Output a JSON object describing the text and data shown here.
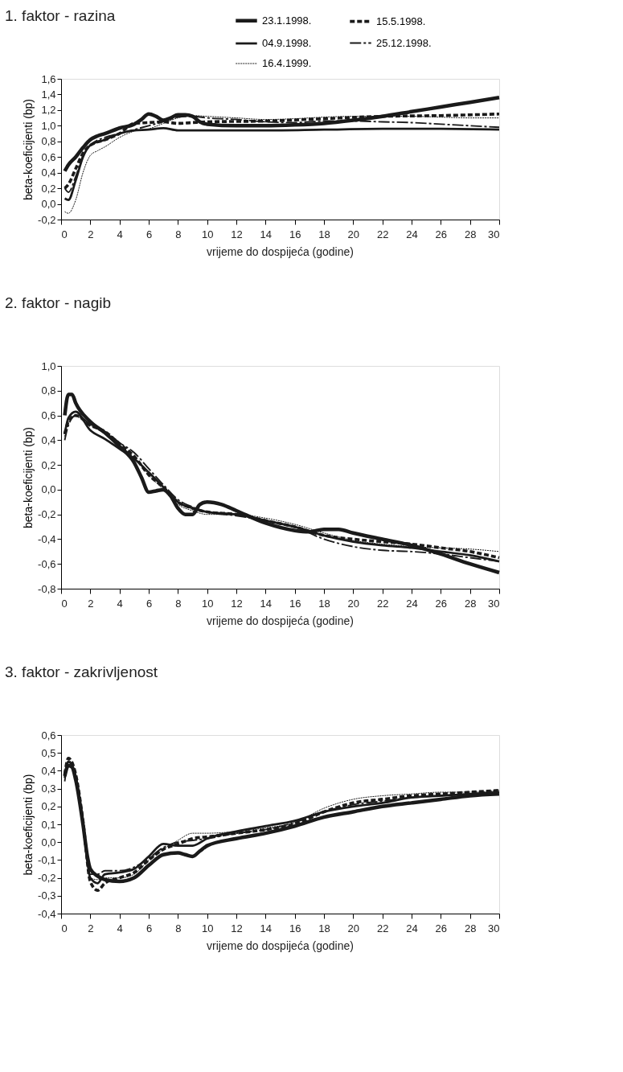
{
  "chart_data": [
    {
      "type": "line",
      "title": "1. faktor - razina",
      "xlabel": "vrijeme do dospijeća (godine)",
      "ylabel": "beta-koeficijenti (bp)",
      "xlim": [
        0,
        30
      ],
      "xticks": [
        0,
        2,
        4,
        6,
        8,
        10,
        12,
        14,
        16,
        18,
        20,
        22,
        24,
        26,
        28,
        30
      ],
      "ylim": [
        -0.2,
        1.6
      ],
      "yticks": [
        {
          "value": -0.2,
          "label": "-0,2"
        },
        {
          "value": 0,
          "label": "0,0"
        },
        {
          "value": 0.2,
          "label": "0,2"
        },
        {
          "value": 0.4,
          "label": "0,4"
        },
        {
          "value": 0.6,
          "label": "0,6"
        },
        {
          "value": 0.8,
          "label": "0,8"
        },
        {
          "value": 1.0,
          "label": "1,0"
        },
        {
          "value": 1.2,
          "label": "1,2"
        },
        {
          "value": 1.4,
          "label": "1,4"
        },
        {
          "value": 1.6,
          "label": "1,6"
        }
      ],
      "grid": false,
      "legend": "top right",
      "series": [
        {
          "name": "23.1.1998.",
          "color": "#1a1a1a",
          "line_style": "solid",
          "x": [
            0.25,
            0.5,
            1,
            1.5,
            2,
            2.5,
            3,
            4,
            5,
            5.5,
            6,
            6.5,
            7,
            7.5,
            8,
            8.5,
            9,
            9.5,
            10,
            12,
            14,
            16,
            18,
            20,
            22,
            24,
            26,
            28,
            30
          ],
          "values": [
            0.42,
            0.5,
            0.6,
            0.72,
            0.82,
            0.87,
            0.9,
            0.97,
            1.02,
            1.08,
            1.15,
            1.12,
            1.07,
            1.1,
            1.14,
            1.14,
            1.12,
            1.05,
            1.02,
            1.0,
            1.0,
            1.01,
            1.03,
            1.07,
            1.12,
            1.18,
            1.24,
            1.3,
            1.36
          ]
        },
        {
          "name": "15.5.1998.",
          "color": "#1a1a1a",
          "line_style": "dashed",
          "x": [
            0.25,
            0.5,
            1,
            1.5,
            2,
            3,
            4,
            5,
            6,
            7,
            8,
            9,
            10,
            14,
            18,
            22,
            26,
            30
          ],
          "values": [
            0.2,
            0.25,
            0.45,
            0.65,
            0.75,
            0.82,
            0.9,
            1.03,
            1.04,
            1.05,
            1.03,
            1.04,
            1.05,
            1.06,
            1.09,
            1.12,
            1.13,
            1.15
          ]
        },
        {
          "name": "04.9.1998.",
          "color": "#1a1a1a",
          "line_style": "solid",
          "x": [
            0.25,
            0.5,
            1,
            1.5,
            2,
            3,
            4,
            5,
            6,
            7,
            8,
            10,
            14,
            18,
            22,
            26,
            30
          ],
          "values": [
            0.07,
            0.05,
            0.3,
            0.6,
            0.75,
            0.82,
            0.9,
            0.94,
            0.95,
            0.97,
            0.94,
            0.94,
            0.94,
            0.95,
            0.96,
            0.96,
            0.95
          ]
        },
        {
          "name": "25.12.1998.",
          "color": "#1a1a1a",
          "line_style": "dashed",
          "x": [
            0.25,
            0.5,
            1,
            1.5,
            2,
            3,
            4,
            5,
            6,
            7,
            8,
            9,
            10,
            12,
            14,
            16,
            18,
            20,
            22,
            24,
            26,
            28,
            30
          ],
          "values": [
            0.2,
            0.15,
            0.35,
            0.62,
            0.75,
            0.85,
            0.9,
            0.95,
            1.0,
            1.05,
            1.11,
            1.12,
            1.1,
            1.08,
            1.05,
            1.04,
            1.06,
            1.06,
            1.05,
            1.04,
            1.02,
            1.0,
            0.98
          ]
        },
        {
          "name": "16.4.1999.",
          "color": "#1a1a1a",
          "line_style": "dotted",
          "x": [
            0.25,
            0.5,
            1,
            1.5,
            2,
            2.5,
            3,
            4,
            5,
            6,
            7,
            8,
            9,
            10,
            12,
            14,
            16,
            18,
            20,
            22,
            24,
            26,
            28,
            30
          ],
          "values": [
            -0.1,
            -0.12,
            0.05,
            0.4,
            0.62,
            0.68,
            0.73,
            0.85,
            0.93,
            0.96,
            1.03,
            1.1,
            1.13,
            1.12,
            1.1,
            1.08,
            1.09,
            1.11,
            1.12,
            1.12,
            1.12,
            1.11,
            1.1,
            1.1
          ]
        }
      ]
    },
    {
      "type": "line",
      "title": "2. faktor - nagib",
      "xlabel": "vrijeme do dospijeća (godine)",
      "ylabel": "beta-koeficijenti (bp)",
      "xlim": [
        0,
        30
      ],
      "xticks": [
        0,
        2,
        4,
        6,
        8,
        10,
        12,
        14,
        16,
        18,
        20,
        22,
        24,
        26,
        28,
        30
      ],
      "ylim": [
        -0.8,
        1.0
      ],
      "yticks": [
        {
          "value": -0.8,
          "label": "-0,8"
        },
        {
          "value": -0.6,
          "label": "-0,6"
        },
        {
          "value": -0.4,
          "label": "-0,4"
        },
        {
          "value": -0.2,
          "label": "-0,2"
        },
        {
          "value": 0,
          "label": "0,0"
        },
        {
          "value": 0.2,
          "label": "0,2"
        },
        {
          "value": 0.4,
          "label": "0,4"
        },
        {
          "value": 0.6,
          "label": "0,6"
        },
        {
          "value": 0.8,
          "label": "0,8"
        },
        {
          "value": 1.0,
          "label": "1,0"
        }
      ],
      "grid": false,
      "legend": "top right",
      "series": [
        {
          "name": "23.1.1998.",
          "color": "#1a1a1a",
          "line_style": "solid",
          "x": [
            0.25,
            0.5,
            0.75,
            1,
            2,
            3,
            4,
            5,
            5.5,
            6,
            6.5,
            7,
            7.5,
            8,
            8.5,
            9,
            9.5,
            10,
            11,
            12,
            14,
            16,
            17,
            18,
            19,
            20,
            22,
            24,
            26,
            28,
            30
          ],
          "values": [
            0.6,
            0.77,
            0.77,
            0.7,
            0.55,
            0.46,
            0.35,
            0.22,
            0.1,
            -0.02,
            -0.01,
            0.0,
            -0.05,
            -0.15,
            -0.2,
            -0.2,
            -0.12,
            -0.1,
            -0.12,
            -0.17,
            -0.27,
            -0.33,
            -0.34,
            -0.32,
            -0.32,
            -0.35,
            -0.4,
            -0.45,
            -0.52,
            -0.6,
            -0.67
          ]
        },
        {
          "name": "15.5.1998.",
          "color": "#1a1a1a",
          "line_style": "dashed",
          "x": [
            0.25,
            0.5,
            1,
            2,
            3,
            4,
            5,
            6,
            7,
            8,
            9,
            10,
            12,
            14,
            16,
            18,
            20,
            22,
            24,
            26,
            28,
            30
          ],
          "values": [
            0.45,
            0.55,
            0.6,
            0.52,
            0.47,
            0.37,
            0.27,
            0.12,
            0.02,
            -0.1,
            -0.15,
            -0.18,
            -0.2,
            -0.25,
            -0.3,
            -0.37,
            -0.4,
            -0.42,
            -0.44,
            -0.47,
            -0.5,
            -0.55
          ]
        },
        {
          "name": "04.9.1998.",
          "color": "#1a1a1a",
          "line_style": "solid",
          "x": [
            0.25,
            0.5,
            1,
            2,
            3,
            4,
            5,
            6,
            7,
            8,
            9,
            10,
            12,
            14,
            16,
            18,
            20,
            22,
            24,
            26,
            28,
            30
          ],
          "values": [
            0.45,
            0.58,
            0.63,
            0.48,
            0.41,
            0.33,
            0.25,
            0.14,
            0.02,
            -0.1,
            -0.15,
            -0.18,
            -0.2,
            -0.25,
            -0.3,
            -0.37,
            -0.42,
            -0.45,
            -0.47,
            -0.5,
            -0.53,
            -0.58
          ]
        },
        {
          "name": "25.12.1998.",
          "color": "#1a1a1a",
          "line_style": "dashed",
          "x": [
            0.25,
            0.5,
            1,
            2,
            3,
            4,
            5,
            6,
            7,
            8,
            9,
            10,
            12,
            14,
            16,
            18,
            20,
            22,
            24,
            26,
            28,
            30
          ],
          "values": [
            0.4,
            0.52,
            0.6,
            0.53,
            0.47,
            0.38,
            0.3,
            0.17,
            0.04,
            -0.08,
            -0.14,
            -0.18,
            -0.21,
            -0.25,
            -0.3,
            -0.4,
            -0.46,
            -0.49,
            -0.5,
            -0.52,
            -0.55,
            -0.58
          ]
        },
        {
          "name": "16.4.1999.",
          "color": "#1a1a1a",
          "line_style": "dotted",
          "x": [
            0.25,
            0.5,
            1,
            2,
            3,
            4,
            5,
            6,
            7,
            8,
            9,
            10,
            12,
            14,
            16,
            18,
            20,
            22,
            24,
            26,
            28,
            30
          ],
          "values": [
            0.43,
            0.55,
            0.59,
            0.52,
            0.45,
            0.36,
            0.26,
            0.12,
            0.0,
            -0.12,
            -0.17,
            -0.2,
            -0.2,
            -0.23,
            -0.28,
            -0.35,
            -0.41,
            -0.44,
            -0.46,
            -0.47,
            -0.48,
            -0.5
          ]
        }
      ]
    },
    {
      "type": "line",
      "title": "3. faktor - zakrivljenost",
      "xlabel": "vrijeme do dospijeća (godine)",
      "ylabel": "beta-koeficijenti (bp)",
      "xlim": [
        0,
        30
      ],
      "xticks": [
        0,
        2,
        4,
        6,
        8,
        10,
        12,
        14,
        16,
        18,
        20,
        22,
        24,
        26,
        28,
        30
      ],
      "ylim": [
        -0.4,
        0.6
      ],
      "yticks": [
        {
          "value": -0.4,
          "label": "-0,4"
        },
        {
          "value": -0.3,
          "label": "-0,3"
        },
        {
          "value": -0.2,
          "label": "-0,2"
        },
        {
          "value": -0.1,
          "label": "-0,1"
        },
        {
          "value": 0,
          "label": "0,0"
        },
        {
          "value": 0.1,
          "label": "0,1"
        },
        {
          "value": 0.2,
          "label": "0,2"
        },
        {
          "value": 0.3,
          "label": "0,3"
        },
        {
          "value": 0.4,
          "label": "0,4"
        },
        {
          "value": 0.5,
          "label": "0,5"
        },
        {
          "value": 0.6,
          "label": "0,6"
        }
      ],
      "grid": false,
      "legend": "top right",
      "series": [
        {
          "name": "23.1.1998.",
          "color": "#1a1a1a",
          "line_style": "solid",
          "x": [
            0.25,
            0.5,
            0.75,
            1,
            1.5,
            1.8,
            2,
            2.5,
            3,
            4,
            5,
            6,
            7,
            8,
            8.5,
            9,
            9.5,
            10,
            12,
            14,
            16,
            18,
            20,
            22,
            24,
            26,
            28,
            30
          ],
          "values": [
            0.37,
            0.43,
            0.42,
            0.35,
            0.1,
            -0.08,
            -0.15,
            -0.19,
            -0.21,
            -0.22,
            -0.2,
            -0.13,
            -0.07,
            -0.06,
            -0.07,
            -0.08,
            -0.05,
            -0.02,
            0.02,
            0.05,
            0.09,
            0.14,
            0.17,
            0.2,
            0.22,
            0.24,
            0.26,
            0.27
          ]
        },
        {
          "name": "15.5.1998.",
          "color": "#1a1a1a",
          "line_style": "dashed",
          "x": [
            0.25,
            0.5,
            1,
            1.5,
            2,
            2.5,
            3,
            4,
            5,
            6,
            7,
            8,
            9,
            10,
            12,
            14,
            16,
            18,
            20,
            22,
            24,
            26,
            28,
            30
          ],
          "values": [
            0.38,
            0.47,
            0.38,
            0.12,
            -0.22,
            -0.27,
            -0.23,
            -0.2,
            -0.17,
            -0.1,
            -0.04,
            -0.01,
            0.02,
            0.03,
            0.05,
            0.07,
            0.1,
            0.17,
            0.22,
            0.24,
            0.26,
            0.27,
            0.28,
            0.29
          ]
        },
        {
          "name": "04.9.1998.",
          "color": "#1a1a1a",
          "line_style": "solid",
          "x": [
            0.25,
            0.5,
            1,
            1.5,
            2,
            2.5,
            3,
            4,
            5,
            6,
            7,
            8,
            9,
            10,
            12,
            14,
            16,
            18,
            20,
            22,
            24,
            26,
            28,
            30
          ],
          "values": [
            0.36,
            0.45,
            0.37,
            0.1,
            -0.2,
            -0.23,
            -0.18,
            -0.17,
            -0.15,
            -0.08,
            -0.01,
            -0.02,
            -0.02,
            0.02,
            0.06,
            0.09,
            0.12,
            0.17,
            0.2,
            0.22,
            0.25,
            0.26,
            0.27,
            0.28
          ]
        },
        {
          "name": "25.12.1998.",
          "color": "#1a1a1a",
          "line_style": "dashed",
          "x": [
            0.25,
            0.5,
            1,
            1.5,
            2,
            2.5,
            3,
            4,
            5,
            6,
            7,
            8,
            9,
            10,
            12,
            14,
            16,
            18,
            20,
            22,
            24,
            26,
            28,
            30
          ],
          "values": [
            0.34,
            0.45,
            0.37,
            0.1,
            -0.18,
            -0.18,
            -0.16,
            -0.16,
            -0.14,
            -0.09,
            -0.03,
            0.0,
            0.01,
            0.02,
            0.05,
            0.07,
            0.11,
            0.17,
            0.21,
            0.23,
            0.25,
            0.26,
            0.27,
            0.28
          ]
        },
        {
          "name": "16.4.1999.",
          "color": "#1a1a1a",
          "line_style": "dotted",
          "x": [
            0.25,
            0.5,
            1,
            1.5,
            2,
            2.5,
            3,
            4,
            5,
            6,
            7,
            8,
            9,
            10,
            12,
            14,
            16,
            18,
            20,
            22,
            24,
            26,
            28,
            30
          ],
          "values": [
            0.38,
            0.46,
            0.38,
            0.12,
            -0.2,
            -0.21,
            -0.2,
            -0.2,
            -0.18,
            -0.1,
            -0.04,
            0.01,
            0.05,
            0.05,
            0.06,
            0.08,
            0.11,
            0.19,
            0.24,
            0.26,
            0.27,
            0.28,
            0.28,
            0.29
          ]
        }
      ]
    }
  ]
}
